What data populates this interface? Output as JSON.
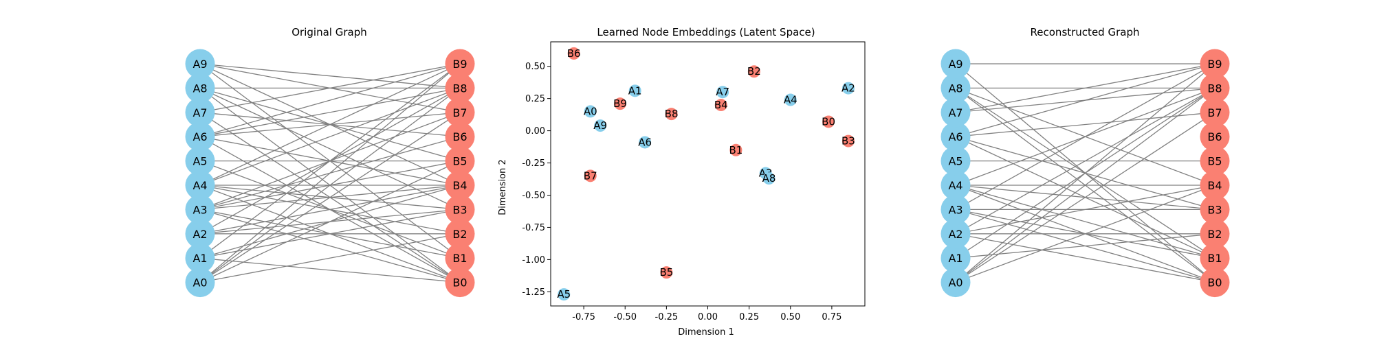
{
  "colors": {
    "group_a": "#87ceeb",
    "group_b": "#fa8072",
    "edge": "#808080",
    "text": "#000000"
  },
  "chart_data": [
    {
      "type": "graph",
      "title": "Original Graph",
      "nodes_a": [
        "A0",
        "A1",
        "A2",
        "A3",
        "A4",
        "A5",
        "A6",
        "A7",
        "A8",
        "A9"
      ],
      "nodes_b": [
        "B0",
        "B1",
        "B2",
        "B3",
        "B4",
        "B5",
        "B6",
        "B7",
        "B8",
        "B9"
      ],
      "edges": [
        [
          "A9",
          "B8"
        ],
        [
          "A9",
          "B7"
        ],
        [
          "A9",
          "B4"
        ],
        [
          "A9",
          "B1"
        ],
        [
          "A8",
          "B8"
        ],
        [
          "A8",
          "B5"
        ],
        [
          "A8",
          "B3"
        ],
        [
          "A8",
          "B0"
        ],
        [
          "A7",
          "B9"
        ],
        [
          "A7",
          "B6"
        ],
        [
          "A7",
          "B0"
        ],
        [
          "A6",
          "B9"
        ],
        [
          "A6",
          "B8"
        ],
        [
          "A6",
          "B7"
        ],
        [
          "A6",
          "B4"
        ],
        [
          "A6",
          "B0"
        ],
        [
          "A5",
          "B5"
        ],
        [
          "A5",
          "B1"
        ],
        [
          "A4",
          "B9"
        ],
        [
          "A4",
          "B8"
        ],
        [
          "A4",
          "B4"
        ],
        [
          "A4",
          "B3"
        ],
        [
          "A4",
          "B2"
        ],
        [
          "A4",
          "B0"
        ],
        [
          "A3",
          "B7"
        ],
        [
          "A3",
          "B6"
        ],
        [
          "A3",
          "B5"
        ],
        [
          "A3",
          "B4"
        ],
        [
          "A3",
          "B1"
        ],
        [
          "A3",
          "B0"
        ],
        [
          "A2",
          "B8"
        ],
        [
          "A2",
          "B4"
        ],
        [
          "A2",
          "B3"
        ],
        [
          "A2",
          "B2"
        ],
        [
          "A1",
          "B9"
        ],
        [
          "A1",
          "B4"
        ],
        [
          "A1",
          "B3"
        ],
        [
          "A1",
          "B0"
        ],
        [
          "A0",
          "B9"
        ],
        [
          "A0",
          "B8"
        ],
        [
          "A0",
          "B7"
        ],
        [
          "A0",
          "B5"
        ],
        [
          "A0",
          "B2"
        ]
      ]
    },
    {
      "type": "scatter",
      "title": "Learned Node Embeddings (Latent Space)",
      "xlabel": "Dimension 1",
      "ylabel": "Dimension 2",
      "xlim": [
        -0.95,
        0.95
      ],
      "ylim": [
        -1.36,
        0.69
      ],
      "xticks": [
        "-0.75",
        "-0.50",
        "-0.25",
        "0.00",
        "0.25",
        "0.50",
        "0.75"
      ],
      "xtick_values": [
        -0.75,
        -0.5,
        -0.25,
        0,
        0.25,
        0.5,
        0.75
      ],
      "yticks": [
        "0.50",
        "0.25",
        "0.00",
        "-0.25",
        "-0.50",
        "-0.75",
        "-1.00",
        "-1.25"
      ],
      "ytick_values": [
        0.5,
        0.25,
        0,
        -0.25,
        -0.5,
        -0.75,
        -1.0,
        -1.25
      ],
      "points": [
        {
          "label": "B6",
          "group": "b",
          "x": -0.81,
          "y": 0.6
        },
        {
          "label": "A1",
          "group": "a",
          "x": -0.44,
          "y": 0.31
        },
        {
          "label": "B9",
          "group": "b",
          "x": -0.53,
          "y": 0.21
        },
        {
          "label": "A0",
          "group": "a",
          "x": -0.71,
          "y": 0.15
        },
        {
          "label": "A9",
          "group": "a",
          "x": -0.65,
          "y": 0.04
        },
        {
          "label": "A6",
          "group": "a",
          "x": -0.38,
          "y": -0.09
        },
        {
          "label": "B8",
          "group": "b",
          "x": -0.22,
          "y": 0.13
        },
        {
          "label": "B7",
          "group": "b",
          "x": -0.71,
          "y": -0.35
        },
        {
          "label": "B5",
          "group": "b",
          "x": -0.25,
          "y": -1.1
        },
        {
          "label": "A5",
          "group": "a",
          "x": -0.87,
          "y": -1.27
        },
        {
          "label": "A7",
          "group": "a",
          "x": 0.09,
          "y": 0.3
        },
        {
          "label": "B4",
          "group": "b",
          "x": 0.08,
          "y": 0.2
        },
        {
          "label": "B2",
          "group": "b",
          "x": 0.28,
          "y": 0.46
        },
        {
          "label": "B1",
          "group": "b",
          "x": 0.17,
          "y": -0.15
        },
        {
          "label": "A3",
          "group": "a",
          "x": 0.35,
          "y": -0.33
        },
        {
          "label": "A8",
          "group": "a",
          "x": 0.37,
          "y": -0.37
        },
        {
          "label": "A4",
          "group": "a",
          "x": 0.5,
          "y": 0.24
        },
        {
          "label": "A2",
          "group": "a",
          "x": 0.85,
          "y": 0.33
        },
        {
          "label": "B0",
          "group": "b",
          "x": 0.73,
          "y": 0.07
        },
        {
          "label": "B3",
          "group": "b",
          "x": 0.85,
          "y": -0.08
        }
      ]
    },
    {
      "type": "graph",
      "title": "Reconstructed Graph",
      "nodes_a": [
        "A0",
        "A1",
        "A2",
        "A3",
        "A4",
        "A5",
        "A6",
        "A7",
        "A8",
        "A9"
      ],
      "nodes_b": [
        "B0",
        "B1",
        "B2",
        "B3",
        "B4",
        "B5",
        "B6",
        "B7",
        "B8",
        "B9"
      ],
      "edges": [
        [
          "A9",
          "B9"
        ],
        [
          "A9",
          "B0"
        ],
        [
          "A8",
          "B8"
        ],
        [
          "A8",
          "B4"
        ],
        [
          "A8",
          "B1"
        ],
        [
          "A8",
          "B0"
        ],
        [
          "A7",
          "B9"
        ],
        [
          "A7",
          "B8"
        ],
        [
          "A6",
          "B9"
        ],
        [
          "A6",
          "B7"
        ],
        [
          "A6",
          "B3"
        ],
        [
          "A6",
          "B1"
        ],
        [
          "A5",
          "B5"
        ],
        [
          "A4",
          "B8"
        ],
        [
          "A4",
          "B4"
        ],
        [
          "A4",
          "B3"
        ],
        [
          "A4",
          "B1"
        ],
        [
          "A4",
          "B0"
        ],
        [
          "A3",
          "B9"
        ],
        [
          "A3",
          "B3"
        ],
        [
          "A3",
          "B1"
        ],
        [
          "A3",
          "B0"
        ],
        [
          "A2",
          "B8"
        ],
        [
          "A2",
          "B4"
        ],
        [
          "A2",
          "B2"
        ],
        [
          "A2",
          "B0"
        ],
        [
          "A1",
          "B8"
        ],
        [
          "A1",
          "B2"
        ],
        [
          "A0",
          "B9"
        ],
        [
          "A0",
          "B8"
        ],
        [
          "A0",
          "B7"
        ],
        [
          "A0",
          "B4"
        ]
      ]
    }
  ]
}
